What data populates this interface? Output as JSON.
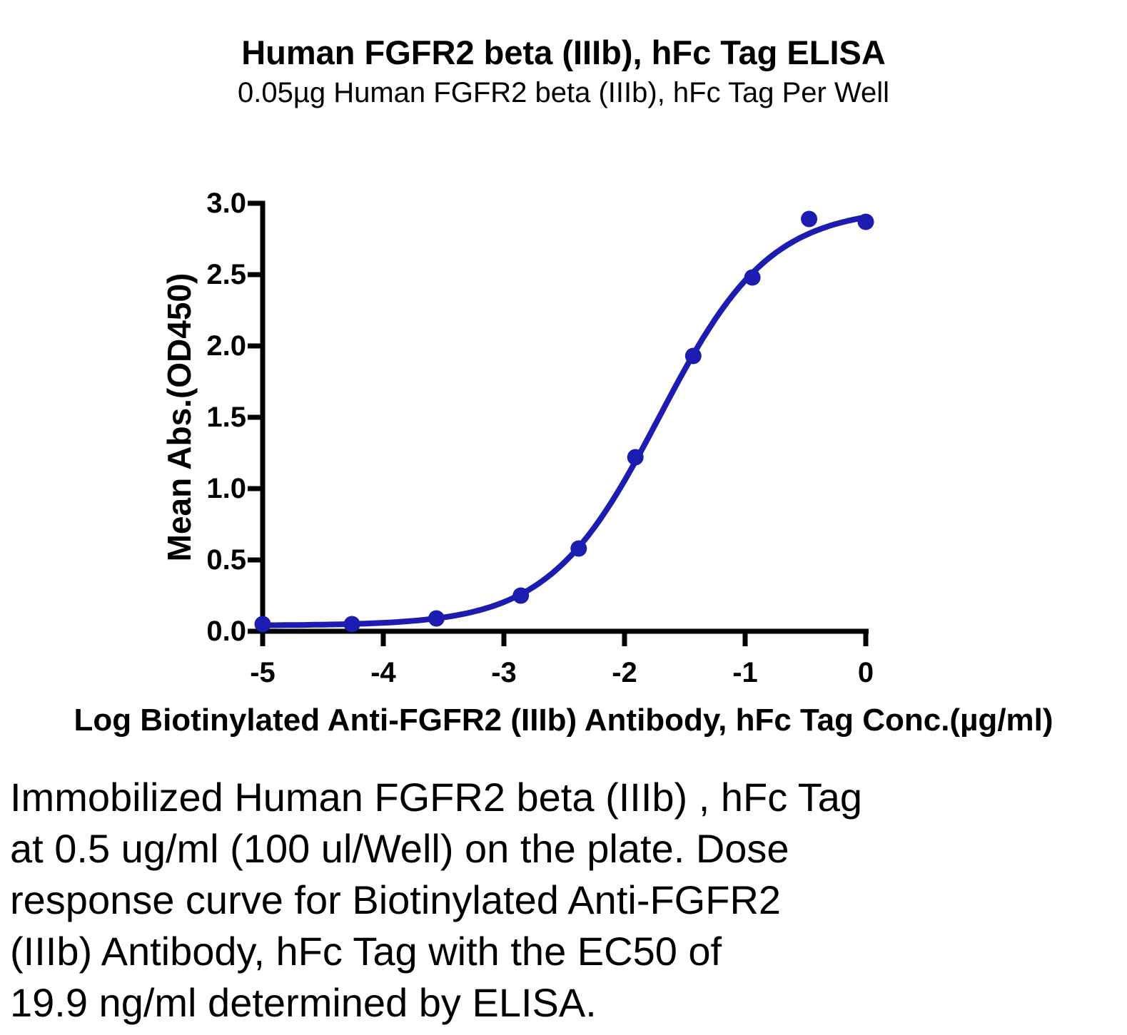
{
  "figure": {
    "title": "Human FGFR2 beta (IIIb), hFc Tag ELISA",
    "subtitle": "0.05µg Human FGFR2 beta (IIIb), hFc Tag Per Well"
  },
  "caption": {
    "lines": [
      "Immobilized Human FGFR2 beta (IIIb) , hFc Tag",
      "at 0.5 ug/ml (100 ul/Well) on the plate. Dose",
      "response curve for Biotinylated Anti-FGFR2",
      "(IIIb) Antibody, hFc Tag with the EC50 of",
      "19.9 ng/ml determined by ELISA."
    ]
  },
  "colors": {
    "curve": "#1c1cb0",
    "axis": "#000000",
    "text": "#000000",
    "background": "#ffffff"
  },
  "chart_data": {
    "type": "scatter",
    "title": "Human FGFR2 beta (IIIb), hFc Tag ELISA",
    "subtitle": "0.05µg Human FGFR2 beta (IIIb), hFc Tag Per Well",
    "xlabel": "Log Biotinylated Anti-FGFR2 (IIIb) Antibody, hFc Tag Conc.(µg/ml)",
    "ylabel": "Mean Abs.(OD450)",
    "xlim": [
      -5,
      0
    ],
    "ylim": [
      0,
      3
    ],
    "grid": false,
    "legend": "none",
    "x_ticks": [
      -5,
      -4,
      -3,
      -2,
      -1,
      0
    ],
    "x_tick_labels": [
      "-5",
      "-4",
      "-3",
      "-2",
      "-1",
      "0"
    ],
    "y_ticks": [
      0,
      0.5,
      1,
      1.5,
      2,
      2.5,
      3
    ],
    "y_tick_labels": [
      "0.0",
      "0.5",
      "1.0",
      "1.5",
      "2.0",
      "2.5",
      "3.0"
    ],
    "series": [
      {
        "name": "Biotinylated Anti-FGFR2 (IIIb) Antibody, hFc Tag",
        "marker": "circle",
        "marker_color": "#1c1cb0",
        "points": [
          {
            "log_conc": -5.0,
            "od450": 0.05
          },
          {
            "log_conc": -4.26,
            "od450": 0.05
          },
          {
            "log_conc": -3.56,
            "od450": 0.09
          },
          {
            "log_conc": -2.86,
            "od450": 0.25
          },
          {
            "log_conc": -2.38,
            "od450": 0.58
          },
          {
            "log_conc": -1.91,
            "od450": 1.22
          },
          {
            "log_conc": -1.43,
            "od450": 1.93
          },
          {
            "log_conc": -0.94,
            "od450": 2.48
          },
          {
            "log_conc": -0.47,
            "od450": 2.89
          },
          {
            "log_conc": 0.0,
            "od450": 2.87
          }
        ]
      }
    ],
    "fit_curve": {
      "model": "4PL",
      "bottom": 0.04,
      "top": 2.97,
      "log_ec50": -1.71,
      "hill": 0.95
    },
    "ec50_label": "19.9 ng/ml"
  }
}
